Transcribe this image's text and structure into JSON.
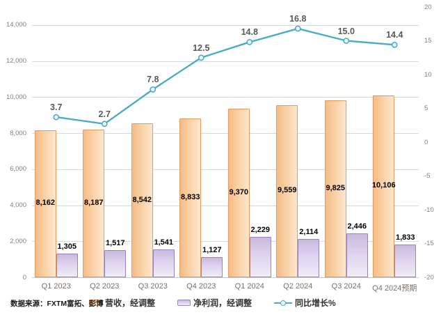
{
  "source_note": "数据来源：FXTM富拓、彭博",
  "colors": {
    "revenue_fill_dark": "#F5BB85",
    "revenue_fill_light": "#FDE7CE",
    "revenue_border": "#E39A60",
    "profit_fill_dark": "#CABADE",
    "profit_fill_light": "#F0ECF8",
    "profit_border": "#9784BE",
    "growth_line": "#4BACC6",
    "gridline": "#D9D9D9",
    "axis_text": "#808080",
    "x_axis_text": "#7A7066",
    "line_label_text": "#595959",
    "bar_label_text": "#000000"
  },
  "chart_data": {
    "type": "combo-bar-line",
    "grid": true,
    "legend_position": "bottom",
    "categories": [
      "Q1 2023",
      "Q2 2023",
      "Q3 2023",
      "Q4 2023",
      "Q1 2024",
      "Q2 2024",
      "Q3 2024",
      "Q4 2024预期"
    ],
    "series": [
      {
        "name": "营收，经调整",
        "type": "bar",
        "axis": "left",
        "label_position": "inside-center",
        "values": [
          8162,
          8187,
          8542,
          8833,
          9370,
          9559,
          9825,
          10106
        ],
        "labels": [
          "8,162",
          "8,187",
          "8,542",
          "8,833",
          "9,370",
          "9,559",
          "9,825",
          "10,106"
        ]
      },
      {
        "name": "净利润，经调整",
        "type": "bar",
        "axis": "left",
        "label_position": "outside-top",
        "values": [
          1305,
          1517,
          1541,
          1127,
          2229,
          2114,
          2446,
          1833
        ],
        "labels": [
          "1,305",
          "1,517",
          "1,541",
          "1,127",
          "2,229",
          "2,114",
          "2,446",
          "1,833"
        ]
      },
      {
        "name": "同比增长%",
        "type": "line",
        "axis": "right",
        "label_position": "above",
        "values": [
          3.7,
          2.7,
          7.8,
          12.5,
          14.8,
          16.8,
          15.0,
          14.4
        ],
        "labels": [
          "3.7",
          "2.7",
          "7.8",
          "12.5",
          "14.8",
          "16.8",
          "15.0",
          "14.4"
        ]
      }
    ],
    "left_axis": {
      "scale_min": 0,
      "scale_max": 15000,
      "ticks": [
        {
          "label": "0",
          "value": 0
        },
        {
          "label": "2,000",
          "value": 2000
        },
        {
          "label": "4,000",
          "value": 4000
        },
        {
          "label": "6,000",
          "value": 6000
        },
        {
          "label": "8,000",
          "value": 8000
        },
        {
          "label": "10,000",
          "value": 10000
        },
        {
          "label": "12,000",
          "value": 12000
        },
        {
          "label": "14,000",
          "value": 14000
        }
      ]
    },
    "right_axis": {
      "scale_min": -20,
      "scale_max": 20,
      "ticks": [
        {
          "label": "-20",
          "value": -20
        },
        {
          "label": "-15",
          "value": -15
        },
        {
          "label": "-10",
          "value": -10
        },
        {
          "label": "-5",
          "value": -5
        },
        {
          "label": "0",
          "value": 0
        },
        {
          "label": "5",
          "value": 5
        },
        {
          "label": "10",
          "value": 10
        },
        {
          "label": "15",
          "value": 15
        },
        {
          "label": "20",
          "value": 20
        }
      ]
    }
  }
}
